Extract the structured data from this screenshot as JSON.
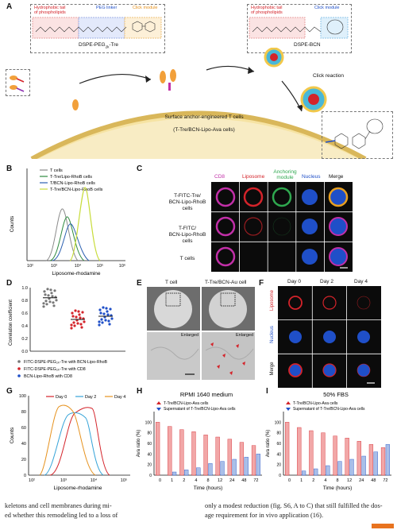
{
  "panelA": {
    "letter": "A",
    "left_box": {
      "hydrophobic": [
        "Hydrophobic tail",
        "of phospholipids"
      ],
      "peg": "PEG linker",
      "click": "Click module",
      "compound": "DSPE-PEG",
      "compound_sub": "2k",
      "compound_suffix": "-Tre"
    },
    "right_box": {
      "hydrophobic": [
        "Hydrophobic tail",
        "of phospholipids"
      ],
      "click": "Click module",
      "compound": "DSPE-BCN"
    },
    "click_reaction": "Click reaction",
    "membrane_title": "Surface anchor-engineered T cells",
    "membrane_sub": "(T-Tre/BCN-Lipo-Ava cells)"
  },
  "panelB": {
    "letter": "B",
    "legend": [
      "T cells",
      "T-Tre/Lipo-RhoB cells",
      "T/BCN-Lipo-RhoB cells",
      "T-Tre/BCN-Lipo-RhoB cells"
    ],
    "colors": [
      "#8a8a8a",
      "#2f8a3f",
      "#2a5fb0",
      "#c8dc3a"
    ],
    "ylabel": "Counts",
    "xlabel": "Liposome-rhodamine",
    "xticks": [
      "10²",
      "10³",
      "10⁴",
      "10⁵",
      "10⁶"
    ]
  },
  "panelC": {
    "letter": "C",
    "columns": [
      "CD8",
      "Liposome",
      "Anchoring module",
      "Nucleus",
      "Merge"
    ],
    "column_colors": [
      "#c22fa8",
      "#d4232a",
      "#2fa84f",
      "#1f4fc8",
      "#111111"
    ],
    "rows": [
      [
        "T-FITC-Tre/",
        "BCN-Lipo-RhoB",
        "cells"
      ],
      [
        "T-FITC/",
        "BCN-Lipo-RhoB",
        "cells"
      ],
      [
        "T cells"
      ]
    ]
  },
  "panelD": {
    "letter": "D",
    "ylabel": "Correlation coefficient",
    "yticks": [
      "0.0",
      "0.2",
      "0.4",
      "0.6",
      "0.8",
      "1.0"
    ],
    "legend": [
      "FITC-DSPE-PEG₂ₖ-Tre with BCN-Lipo-RhoB",
      "FITC-DSPE-PEG₂ₖ-Tre with CD8",
      "BCN-Lipo-RhoB with CD8"
    ],
    "means": [
      0.84,
      0.5,
      0.55
    ]
  },
  "panelE": {
    "letter": "E",
    "labels": [
      "T cell",
      "T-Tre/BCN-Au cell"
    ],
    "enlarged": "Enlarged"
  },
  "panelF": {
    "letter": "F",
    "days": [
      "Day 0",
      "Day 2",
      "Day 4"
    ],
    "rows": [
      "Liposome",
      "Nucleus",
      "Merge"
    ]
  },
  "panelG": {
    "letter": "G",
    "legend": [
      "Day 0",
      "Day 2",
      "Day 4"
    ],
    "colors": [
      "#d4232a",
      "#35a3d8",
      "#e6921e"
    ],
    "ylabel": "Counts",
    "xlabel": "Liposome-rhodamine",
    "xticks": [
      "10²",
      "10³",
      "10⁴",
      "10⁵"
    ],
    "yticks": [
      "0",
      "20",
      "40",
      "60",
      "80",
      "100"
    ]
  },
  "chart_data": [
    {
      "type": "bar",
      "panel": "H",
      "title": "RPMI 1640 medium",
      "xlabel": "Time (hours)",
      "ylabel": "Ava ratio (%)",
      "ylim": [
        0,
        120
      ],
      "categories": [
        "0",
        "1",
        "2",
        "4",
        "8",
        "12",
        "24",
        "48",
        "72"
      ],
      "series": [
        {
          "name": "T-Tre/BCN-Lipo-Ava cells",
          "values": [
            100,
            92,
            86,
            82,
            76,
            72,
            68,
            62,
            56
          ]
        },
        {
          "name": "Supernatant of T-Tre/BCN-Lipo-Ava cells",
          "values": [
            0,
            6,
            10,
            14,
            22,
            26,
            30,
            34,
            40
          ]
        }
      ]
    },
    {
      "type": "bar",
      "panel": "I",
      "title": "50% FBS",
      "xlabel": "Time (hours)",
      "ylabel": "Ava ratio (%)",
      "ylim": [
        0,
        120
      ],
      "categories": [
        "0",
        "1",
        "2",
        "4",
        "8",
        "12",
        "24",
        "48",
        "72"
      ],
      "series": [
        {
          "name": "T-Tre/BCN-Lipo-Ava cells",
          "values": [
            100,
            90,
            84,
            80,
            74,
            70,
            64,
            58,
            52
          ]
        },
        {
          "name": "Supernatant of T-Tre/BCN-Lipo-Ava cells",
          "values": [
            0,
            8,
            12,
            18,
            26,
            30,
            36,
            44,
            58
          ]
        }
      ]
    }
  ],
  "body_text": {
    "left": [
      "keletons and cell membranes during mi-",
      "ed whether this remodeling led to a loss of"
    ],
    "right": [
      "only a modest reduction (fig. S6, A to C) that still fulfilled the dos-",
      "age requirement for in vivo application (16)."
    ]
  }
}
